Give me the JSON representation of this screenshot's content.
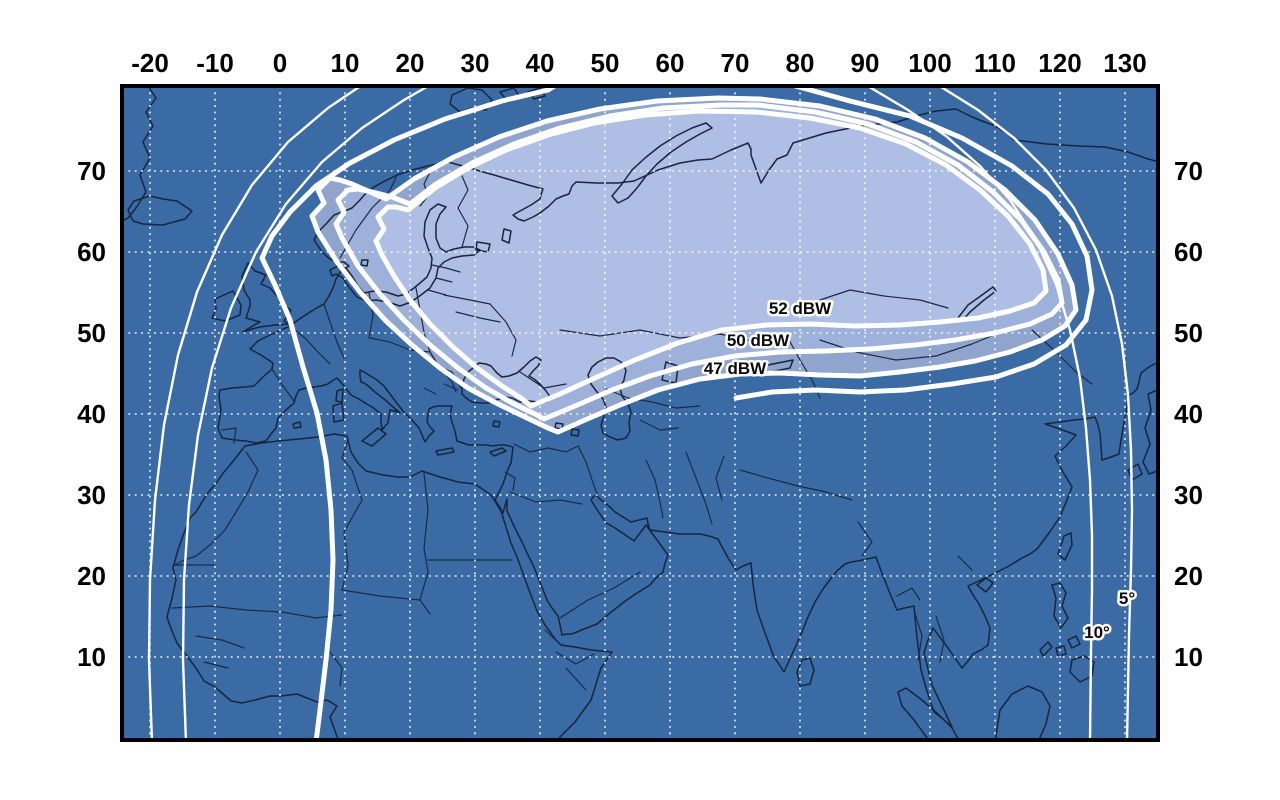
{
  "figure": {
    "type": "satellite-footprint-coverage-map",
    "x_axis_ticks": [
      "-20",
      "-10",
      "0",
      "10",
      "20",
      "30",
      "40",
      "50",
      "60",
      "70",
      "80",
      "90",
      "100",
      "110",
      "120",
      "130"
    ],
    "y_axis_ticks": [
      "70",
      "60",
      "50",
      "40",
      "30",
      "20",
      "10"
    ],
    "power_contours": [
      {
        "id": "contour-52dbw",
        "label": "52 dBW"
      },
      {
        "id": "contour-50dbw",
        "label": "50 dBW"
      },
      {
        "id": "contour-47dbw",
        "label": "47 dBW"
      }
    ],
    "elevation_contours": [
      {
        "id": "contour-5deg",
        "label": "5°"
      },
      {
        "id": "contour-10deg",
        "label": "10°"
      }
    ],
    "colors": {
      "ocean": "#3A6BA5",
      "land": "#55C45E",
      "beam_sea_47": "#8FA5CE",
      "beam_sea_50": "#9EB1DA",
      "beam_sea_52": "#AEBEE4",
      "beam_land_47": "#A9E093",
      "beam_land_50": "#BCE8A8",
      "beam_land_52": "#CDEFC0",
      "lake": "#8CA3D0",
      "contour_line": "#FFFFFF",
      "coastline": "#16263E",
      "grid_line": "#FFFFFF",
      "frame": "#000000",
      "axis_text": "#000000"
    }
  }
}
